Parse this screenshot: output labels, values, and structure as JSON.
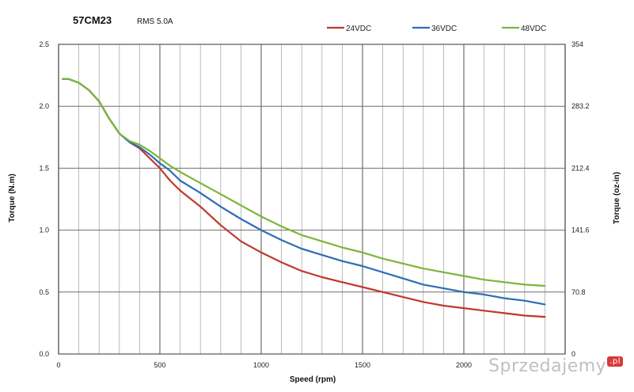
{
  "chart_data": {
    "type": "line",
    "title": "57CM23",
    "subtitle": "RMS 5.0A",
    "xlabel": "Speed (rpm)",
    "ylabel": "Torque (N.m)",
    "y2label": "Torque (oz-in)",
    "xlim": [
      0,
      2500
    ],
    "ylim": [
      0,
      2.5
    ],
    "y2lim": [
      0,
      354
    ],
    "x_ticks": [
      "0",
      "500",
      "1000",
      "1500",
      "2000"
    ],
    "x_tick_values": [
      0,
      500,
      1000,
      1500,
      2000
    ],
    "y_ticks": [
      "0.0",
      "0.5",
      "1.0",
      "1.5",
      "2.0",
      "2.5"
    ],
    "y_tick_values": [
      0,
      0.5,
      1.0,
      1.5,
      2.0,
      2.5
    ],
    "y2_ticks": [
      "0",
      "70.8",
      "141.6",
      "212.4",
      "283.2",
      "354"
    ],
    "y2_tick_values": [
      0,
      70.8,
      141.6,
      212.4,
      283.2,
      354
    ],
    "x_minor_step": 100,
    "x_major_step": 500,
    "grid": true,
    "legend_position": "top-right",
    "series": [
      {
        "name": "24VDC",
        "color": "#c0392b",
        "x": [
          20,
          50,
          100,
          150,
          200,
          250,
          300,
          350,
          400,
          450,
          500,
          550,
          600,
          700,
          800,
          900,
          1000,
          1100,
          1200,
          1300,
          1400,
          1500,
          1600,
          1700,
          1800,
          1900,
          2000,
          2100,
          2200,
          2300,
          2400
        ],
        "y": [
          2.22,
          2.22,
          2.19,
          2.13,
          2.04,
          1.9,
          1.78,
          1.71,
          1.66,
          1.58,
          1.5,
          1.4,
          1.32,
          1.19,
          1.04,
          0.91,
          0.82,
          0.74,
          0.67,
          0.62,
          0.58,
          0.54,
          0.5,
          0.46,
          0.42,
          0.39,
          0.37,
          0.35,
          0.33,
          0.31,
          0.3
        ]
      },
      {
        "name": "36VDC",
        "color": "#2e6db4",
        "x": [
          20,
          50,
          100,
          150,
          200,
          250,
          300,
          350,
          400,
          450,
          500,
          550,
          600,
          700,
          800,
          900,
          1000,
          1100,
          1200,
          1300,
          1400,
          1500,
          1600,
          1700,
          1800,
          1900,
          2000,
          2100,
          2200,
          2300,
          2400
        ],
        "y": [
          2.22,
          2.22,
          2.19,
          2.13,
          2.04,
          1.9,
          1.78,
          1.71,
          1.67,
          1.61,
          1.54,
          1.48,
          1.4,
          1.3,
          1.19,
          1.09,
          1.0,
          0.92,
          0.85,
          0.8,
          0.75,
          0.71,
          0.66,
          0.61,
          0.56,
          0.53,
          0.5,
          0.48,
          0.45,
          0.43,
          0.4
        ]
      },
      {
        "name": "48VDC",
        "color": "#7db53b",
        "x": [
          20,
          50,
          100,
          150,
          200,
          250,
          300,
          350,
          400,
          450,
          500,
          550,
          600,
          700,
          800,
          900,
          1000,
          1100,
          1200,
          1300,
          1400,
          1500,
          1600,
          1700,
          1800,
          1900,
          2000,
          2100,
          2200,
          2300,
          2400
        ],
        "y": [
          2.22,
          2.22,
          2.19,
          2.13,
          2.04,
          1.9,
          1.78,
          1.72,
          1.69,
          1.64,
          1.58,
          1.52,
          1.47,
          1.38,
          1.29,
          1.2,
          1.11,
          1.03,
          0.96,
          0.91,
          0.86,
          0.82,
          0.77,
          0.73,
          0.69,
          0.66,
          0.63,
          0.6,
          0.58,
          0.56,
          0.55
        ]
      }
    ]
  },
  "watermark": {
    "text": "Sprzedajemy",
    "badge": ".pl"
  }
}
